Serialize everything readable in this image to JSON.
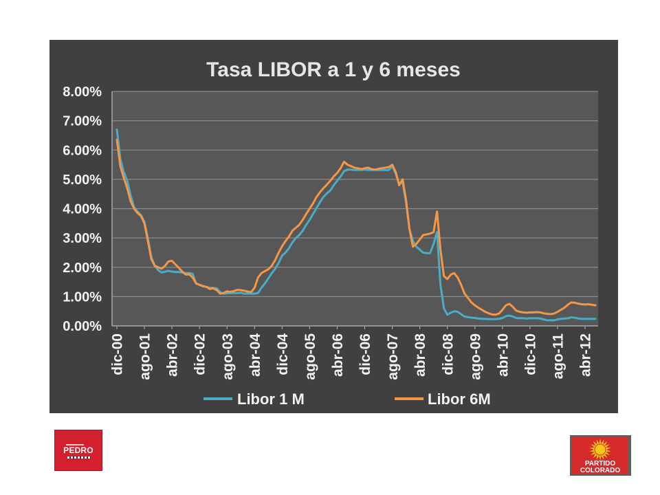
{
  "chart_data": {
    "type": "line",
    "title": "Tasa LIBOR a 1 y 6 meses",
    "xlabel": "",
    "ylabel": "",
    "ylim": [
      0,
      8
    ],
    "y_ticks": [
      0,
      1,
      2,
      3,
      4,
      5,
      6,
      7,
      8
    ],
    "y_tick_labels": [
      "0.00%",
      "1.00%",
      "2.00%",
      "3.00%",
      "4.00%",
      "5.00%",
      "6.00%",
      "7.00%",
      "8.00%"
    ],
    "xlim": [
      "2000-12",
      "2012-07"
    ],
    "x_ticks": [
      {
        "x": "2000-12",
        "label": "dic-00"
      },
      {
        "x": "2001-08",
        "label": "ago-01"
      },
      {
        "x": "2002-04",
        "label": "abr-02"
      },
      {
        "x": "2002-12",
        "label": "dic-02"
      },
      {
        "x": "2003-08",
        "label": "ago-03"
      },
      {
        "x": "2004-04",
        "label": "abr-04"
      },
      {
        "x": "2004-12",
        "label": "dic-04"
      },
      {
        "x": "2005-08",
        "label": "ago-05"
      },
      {
        "x": "2006-04",
        "label": "abr-06"
      },
      {
        "x": "2006-12",
        "label": "dic-06"
      },
      {
        "x": "2007-08",
        "label": "ago-07"
      },
      {
        "x": "2008-04",
        "label": "abr-08"
      },
      {
        "x": "2008-12",
        "label": "dic-08"
      },
      {
        "x": "2009-08",
        "label": "ago-09"
      },
      {
        "x": "2010-04",
        "label": "abr-10"
      },
      {
        "x": "2010-12",
        "label": "dic-10"
      },
      {
        "x": "2011-08",
        "label": "ago-11"
      },
      {
        "x": "2012-04",
        "label": "abr-12"
      }
    ],
    "grid": "horizontal",
    "legend_position": "bottom",
    "x": [
      "2000-12",
      "2001-01",
      "2001-02",
      "2001-03",
      "2001-04",
      "2001-05",
      "2001-06",
      "2001-07",
      "2001-08",
      "2001-09",
      "2001-10",
      "2001-11",
      "2001-12",
      "2002-01",
      "2002-02",
      "2002-03",
      "2002-04",
      "2002-05",
      "2002-06",
      "2002-07",
      "2002-08",
      "2002-09",
      "2002-10",
      "2002-11",
      "2002-12",
      "2003-01",
      "2003-02",
      "2003-03",
      "2003-04",
      "2003-05",
      "2003-06",
      "2003-07",
      "2003-08",
      "2003-09",
      "2003-10",
      "2003-11",
      "2003-12",
      "2004-01",
      "2004-02",
      "2004-03",
      "2004-04",
      "2004-05",
      "2004-06",
      "2004-07",
      "2004-08",
      "2004-09",
      "2004-10",
      "2004-11",
      "2004-12",
      "2005-01",
      "2005-02",
      "2005-03",
      "2005-04",
      "2005-05",
      "2005-06",
      "2005-07",
      "2005-08",
      "2005-09",
      "2005-10",
      "2005-11",
      "2005-12",
      "2006-01",
      "2006-02",
      "2006-03",
      "2006-04",
      "2006-05",
      "2006-06",
      "2006-07",
      "2006-08",
      "2006-09",
      "2006-10",
      "2006-11",
      "2006-12",
      "2007-01",
      "2007-02",
      "2007-03",
      "2007-04",
      "2007-05",
      "2007-06",
      "2007-07",
      "2007-08",
      "2007-09",
      "2007-10",
      "2007-11",
      "2007-12",
      "2008-01",
      "2008-02",
      "2008-03",
      "2008-04",
      "2008-05",
      "2008-06",
      "2008-07",
      "2008-08",
      "2008-09",
      "2008-10",
      "2008-11",
      "2008-12",
      "2009-01",
      "2009-02",
      "2009-03",
      "2009-04",
      "2009-05",
      "2009-06",
      "2009-07",
      "2009-08",
      "2009-09",
      "2009-10",
      "2009-11",
      "2009-12",
      "2010-01",
      "2010-02",
      "2010-03",
      "2010-04",
      "2010-05",
      "2010-06",
      "2010-07",
      "2010-08",
      "2010-09",
      "2010-10",
      "2010-11",
      "2010-12",
      "2011-01",
      "2011-02",
      "2011-03",
      "2011-04",
      "2011-05",
      "2011-06",
      "2011-07",
      "2011-08",
      "2011-09",
      "2011-10",
      "2011-11",
      "2011-12",
      "2012-01",
      "2012-02",
      "2012-03",
      "2012-04",
      "2012-05",
      "2012-06",
      "2012-07"
    ],
    "series": [
      {
        "name": "Libor 1 M",
        "color": "#4bacc6",
        "values": [
          6.7,
          5.7,
          5.25,
          4.95,
          4.45,
          4.05,
          3.9,
          3.78,
          3.55,
          3.0,
          2.35,
          2.05,
          1.9,
          1.82,
          1.85,
          1.88,
          1.85,
          1.84,
          1.84,
          1.82,
          1.8,
          1.8,
          1.78,
          1.45,
          1.4,
          1.35,
          1.33,
          1.3,
          1.3,
          1.28,
          1.15,
          1.1,
          1.11,
          1.12,
          1.12,
          1.12,
          1.13,
          1.1,
          1.1,
          1.1,
          1.1,
          1.12,
          1.3,
          1.45,
          1.62,
          1.8,
          1.95,
          2.15,
          2.4,
          2.5,
          2.65,
          2.85,
          3.0,
          3.1,
          3.25,
          3.45,
          3.62,
          3.82,
          4.02,
          4.22,
          4.4,
          4.52,
          4.62,
          4.8,
          4.95,
          5.1,
          5.28,
          5.33,
          5.33,
          5.32,
          5.32,
          5.32,
          5.33,
          5.32,
          5.32,
          5.32,
          5.32,
          5.32,
          5.32,
          5.32,
          5.45,
          5.2,
          4.85,
          4.9,
          4.2,
          3.3,
          2.9,
          2.7,
          2.6,
          2.5,
          2.48,
          2.48,
          2.8,
          3.2,
          1.4,
          0.6,
          0.38,
          0.45,
          0.5,
          0.48,
          0.4,
          0.32,
          0.3,
          0.28,
          0.27,
          0.25,
          0.24,
          0.24,
          0.23,
          0.23,
          0.23,
          0.24,
          0.27,
          0.33,
          0.35,
          0.32,
          0.27,
          0.26,
          0.26,
          0.25,
          0.26,
          0.26,
          0.26,
          0.25,
          0.22,
          0.19,
          0.19,
          0.19,
          0.22,
          0.24,
          0.25,
          0.26,
          0.29,
          0.28,
          0.25,
          0.24,
          0.24,
          0.24,
          0.24,
          0.24
        ]
      },
      {
        "name": "Libor 6M",
        "color": "#f79646",
        "values": [
          6.35,
          5.45,
          5.05,
          4.7,
          4.25,
          4.0,
          3.85,
          3.75,
          3.5,
          2.9,
          2.28,
          2.05,
          2.0,
          1.95,
          2.05,
          2.2,
          2.22,
          2.1,
          1.98,
          1.85,
          1.75,
          1.76,
          1.65,
          1.45,
          1.4,
          1.36,
          1.33,
          1.26,
          1.28,
          1.22,
          1.1,
          1.12,
          1.18,
          1.16,
          1.19,
          1.23,
          1.22,
          1.2,
          1.17,
          1.15,
          1.3,
          1.65,
          1.8,
          1.87,
          1.93,
          2.05,
          2.25,
          2.5,
          2.72,
          2.9,
          3.05,
          3.25,
          3.35,
          3.45,
          3.62,
          3.82,
          4.0,
          4.18,
          4.4,
          4.56,
          4.7,
          4.82,
          4.95,
          5.1,
          5.22,
          5.38,
          5.6,
          5.5,
          5.45,
          5.4,
          5.38,
          5.35,
          5.38,
          5.4,
          5.35,
          5.33,
          5.36,
          5.38,
          5.4,
          5.42,
          5.5,
          5.25,
          4.8,
          5.0,
          4.3,
          3.3,
          2.7,
          2.8,
          2.95,
          3.1,
          3.12,
          3.15,
          3.2,
          3.9,
          2.6,
          1.7,
          1.6,
          1.75,
          1.8,
          1.65,
          1.4,
          1.1,
          0.95,
          0.8,
          0.7,
          0.62,
          0.55,
          0.48,
          0.43,
          0.39,
          0.38,
          0.42,
          0.55,
          0.7,
          0.75,
          0.65,
          0.52,
          0.48,
          0.46,
          0.45,
          0.46,
          0.46,
          0.47,
          0.46,
          0.43,
          0.41,
          0.4,
          0.42,
          0.48,
          0.55,
          0.62,
          0.72,
          0.8,
          0.79,
          0.76,
          0.74,
          0.73,
          0.74,
          0.72,
          0.7
        ]
      }
    ]
  },
  "logos": {
    "left": {
      "name": "PEDRO",
      "color": "#d3202f"
    },
    "right": {
      "line1": "PARTIDO",
      "line2": "COLORADO",
      "color": "#d62b2b",
      "sun_color": "#f7c51e"
    }
  }
}
